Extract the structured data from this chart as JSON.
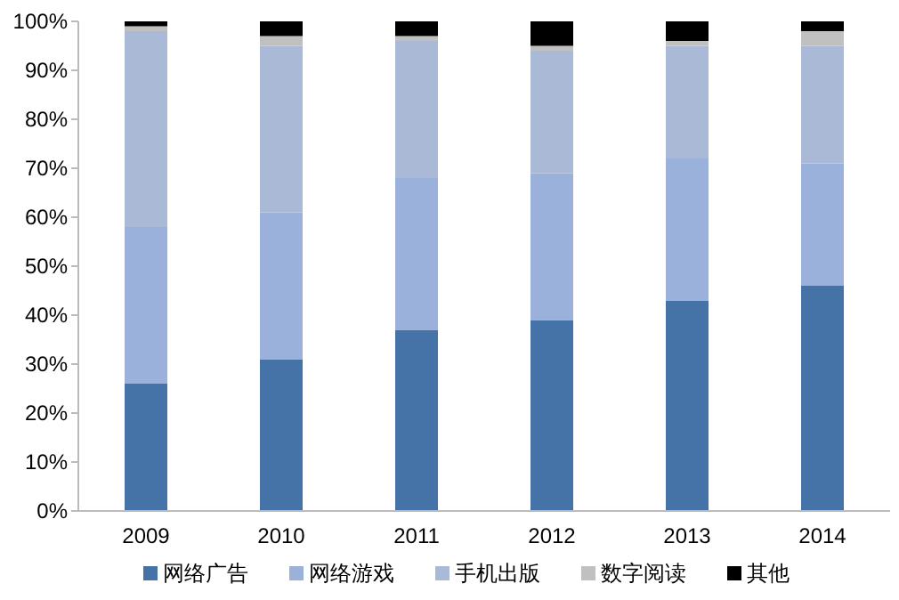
{
  "chart_data": {
    "type": "bar",
    "stacked": true,
    "categories": [
      "2009",
      "2010",
      "2011",
      "2012",
      "2013",
      "2014"
    ],
    "series": [
      {
        "name": "网络广告",
        "color": "#4572a7",
        "values": [
          26,
          31,
          37,
          39,
          43,
          46
        ]
      },
      {
        "name": "网络游戏",
        "color": "#9ab2db",
        "values": [
          32,
          30,
          31,
          30,
          29,
          25
        ]
      },
      {
        "name": "手机出版",
        "color": "#aab9d6",
        "values": [
          40,
          34,
          28,
          25,
          23,
          24
        ]
      },
      {
        "name": "数字阅读",
        "color": "#c0c0c0",
        "values": [
          1,
          2,
          1,
          1,
          1,
          3
        ]
      },
      {
        "name": "其他",
        "color": "#000000",
        "values": [
          1,
          3,
          3,
          5,
          4,
          2
        ]
      }
    ],
    "ylim": [
      0,
      100
    ],
    "yticks": [
      {
        "value": 0,
        "label": "0%"
      },
      {
        "value": 10,
        "label": "10%"
      },
      {
        "value": 20,
        "label": "20%"
      },
      {
        "value": 30,
        "label": "30%"
      },
      {
        "value": 40,
        "label": "40%"
      },
      {
        "value": 50,
        "label": "50%"
      },
      {
        "value": 60,
        "label": "60%"
      },
      {
        "value": 70,
        "label": "70%"
      },
      {
        "value": 80,
        "label": "80%"
      },
      {
        "value": 90,
        "label": "90%"
      },
      {
        "value": 100,
        "label": "100%"
      }
    ],
    "grid": false,
    "legend": "bottom"
  }
}
